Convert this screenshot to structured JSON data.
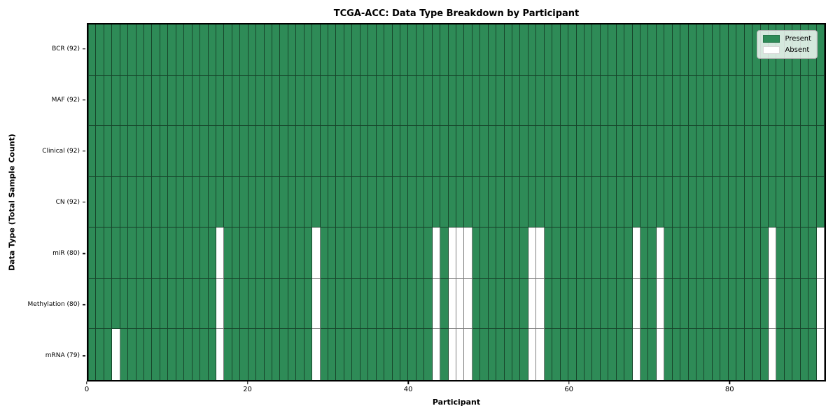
{
  "chart": {
    "title": "TCGA-ACC: Data Type Breakdown by Participant",
    "xlabel": "Participant",
    "ylabel": "Data Type (Total Sample Count)"
  },
  "legend": {
    "present_label": "Present",
    "absent_label": "Absent"
  },
  "colors": {
    "present": "#2e8b57",
    "absent": "#ffffff",
    "cell_edge": "rgba(0,0,0,0.55)",
    "spine": "#000000",
    "legend_background": "rgba(255,255,255,0.8)"
  },
  "chart_data": {
    "type": "heatmap",
    "title": "TCGA-ACC: Data Type Breakdown by Participant",
    "xlabel": "Participant",
    "ylabel": "Data Type (Total Sample Count)",
    "n_participants": 92,
    "x_ticks": [
      0,
      20,
      40,
      60,
      80
    ],
    "legend_position": "upper right",
    "legend_entries": [
      {
        "label": "Present",
        "color": "#2e8b57"
      },
      {
        "label": "Absent",
        "color": "#ffffff"
      }
    ],
    "rows": [
      {
        "label": "BCR (92)",
        "data_type": "BCR",
        "present_count": 92,
        "absent_participants": []
      },
      {
        "label": "MAF (92)",
        "data_type": "MAF",
        "present_count": 92,
        "absent_participants": []
      },
      {
        "label": "Clinical (92)",
        "data_type": "Clinical",
        "present_count": 92,
        "absent_participants": []
      },
      {
        "label": "CN (92)",
        "data_type": "CN",
        "present_count": 92,
        "absent_participants": []
      },
      {
        "label": "miR (80)",
        "data_type": "miR",
        "present_count": 80,
        "absent_participants": [
          16,
          28,
          43,
          45,
          46,
          47,
          55,
          56,
          68,
          71,
          85,
          91
        ]
      },
      {
        "label": "Methylation (80)",
        "data_type": "Methylation",
        "present_count": 80,
        "absent_participants": [
          16,
          28,
          43,
          45,
          46,
          47,
          55,
          56,
          68,
          71,
          85,
          91
        ]
      },
      {
        "label": "mRNA (79)",
        "data_type": "mRNA",
        "present_count": 79,
        "absent_participants": [
          3,
          16,
          28,
          43,
          45,
          46,
          47,
          55,
          56,
          68,
          71,
          85,
          91
        ]
      }
    ]
  }
}
